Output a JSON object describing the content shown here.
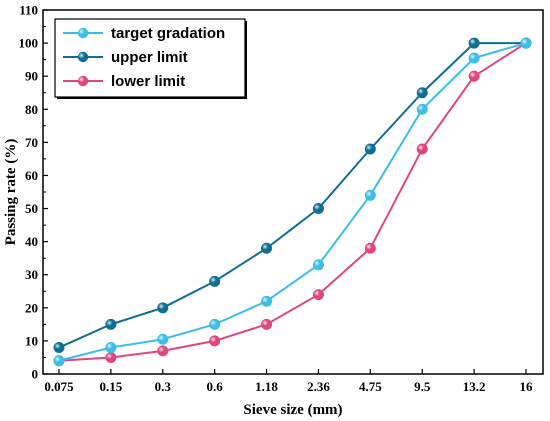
{
  "chart_data": {
    "type": "line",
    "categories": [
      "0.075",
      "0.15",
      "0.3",
      "0.6",
      "1.18",
      "2.36",
      "4.75",
      "9.5",
      "13.2",
      "16"
    ],
    "series": [
      {
        "name": "target gradation",
        "color": "#3cbde8",
        "values": [
          4,
          8,
          10.5,
          15,
          22,
          33,
          54,
          80,
          95.5,
          100
        ]
      },
      {
        "name": "upper limit",
        "color": "#0f6e92",
        "values": [
          8,
          15,
          20,
          28,
          38,
          50,
          68,
          85,
          100,
          100
        ]
      },
      {
        "name": "lower limit",
        "color": "#e0457f",
        "values": [
          4,
          5,
          7,
          10,
          15,
          24,
          38,
          68,
          90,
          100
        ]
      }
    ],
    "xlabel": "Sieve size (mm)",
    "ylabel": "Passing rate (%)",
    "ylim": [
      0,
      110
    ],
    "yticks": [
      0,
      10,
      20,
      30,
      40,
      50,
      60,
      70,
      80,
      90,
      100,
      110
    ],
    "grid": false,
    "legend_position": "top-left"
  }
}
